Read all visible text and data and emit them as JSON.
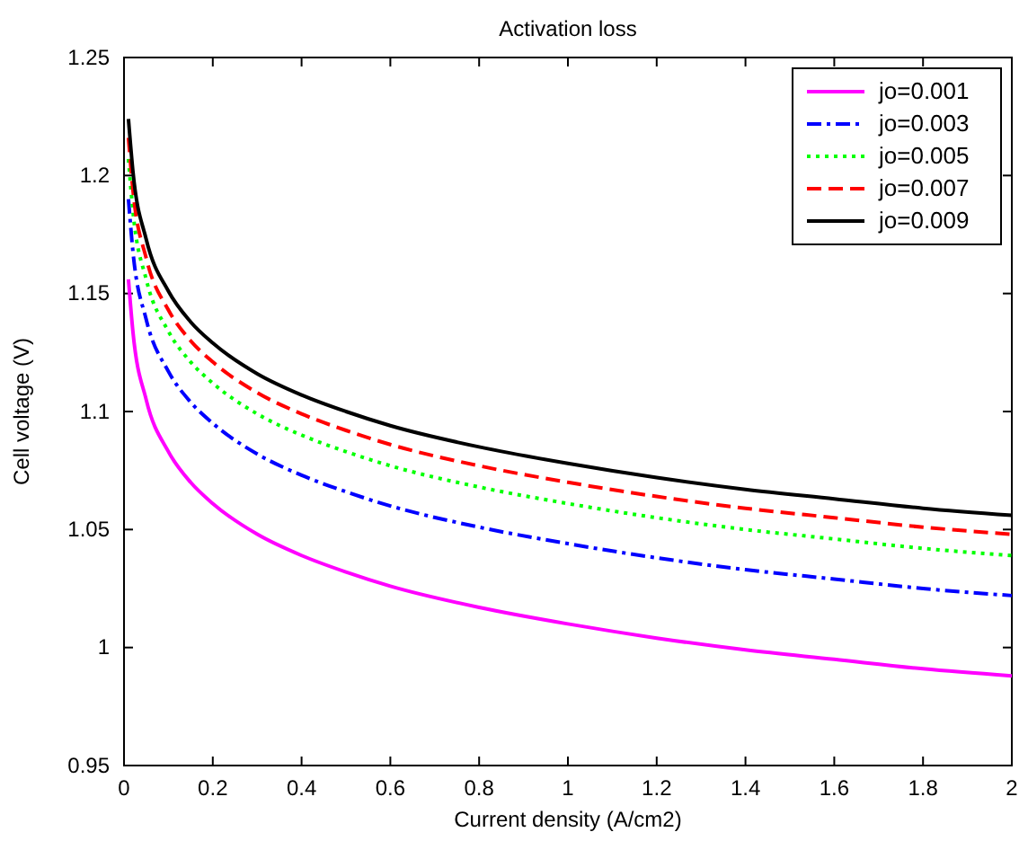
{
  "chart_data": {
    "type": "line",
    "title": "Activation loss",
    "xlabel": "Current density (A/cm2)",
    "ylabel": "Cell voltage (V)",
    "x": [
      0.01,
      0.02,
      0.05,
      0.1,
      0.15,
      0.2,
      0.3,
      0.4,
      0.5,
      0.6,
      0.8,
      1,
      1.2,
      1.4,
      1.6,
      1.8,
      2
    ],
    "xlim": [
      0,
      2
    ],
    "xticks": [
      0,
      0.2,
      0.4,
      0.6,
      0.8,
      1,
      1.2,
      1.4,
      1.6,
      1.8,
      2
    ],
    "ylim": [
      0.95,
      1.25
    ],
    "yticks": [
      0.95,
      1,
      1.05,
      1.1,
      1.15,
      1.2,
      1.25
    ],
    "grid": false,
    "legend": "top right",
    "marker": "none",
    "series": [
      {
        "name": "jo=0.001",
        "color": "#ff00ff",
        "line_style": "solid",
        "values": [
          1.156,
          1.134,
          1.105,
          1.083,
          1.07,
          1.061,
          1.048,
          1.039,
          1.032,
          1.026,
          1.017,
          1.01,
          1.004,
          0.999,
          0.995,
          0.991,
          0.988
        ]
      },
      {
        "name": "jo=0.003",
        "color": "#0000ff",
        "line_style": "dashdot",
        "values": [
          1.19,
          1.168,
          1.139,
          1.117,
          1.104,
          1.095,
          1.082,
          1.073,
          1.066,
          1.06,
          1.051,
          1.044,
          1.038,
          1.033,
          1.029,
          1.025,
          1.022
        ]
      },
      {
        "name": "jo=0.005",
        "color": "#00ff00",
        "line_style": "dotted",
        "values": [
          1.207,
          1.185,
          1.156,
          1.134,
          1.121,
          1.112,
          1.099,
          1.09,
          1.083,
          1.077,
          1.068,
          1.061,
          1.055,
          1.05,
          1.046,
          1.042,
          1.039
        ]
      },
      {
        "name": "jo=0.007",
        "color": "#ff0000",
        "line_style": "dashed",
        "values": [
          1.216,
          1.194,
          1.165,
          1.143,
          1.13,
          1.121,
          1.108,
          1.099,
          1.092,
          1.086,
          1.077,
          1.07,
          1.064,
          1.059,
          1.055,
          1.051,
          1.048
        ]
      },
      {
        "name": "jo=0.009",
        "color": "#000000",
        "line_style": "solid",
        "values": [
          1.224,
          1.202,
          1.173,
          1.151,
          1.138,
          1.129,
          1.116,
          1.107,
          1.1,
          1.094,
          1.085,
          1.078,
          1.072,
          1.067,
          1.063,
          1.059,
          1.056
        ]
      }
    ]
  }
}
